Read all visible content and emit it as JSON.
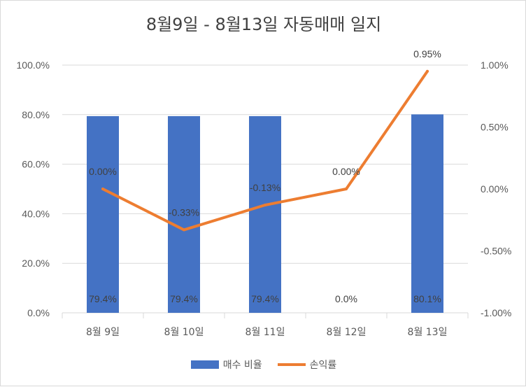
{
  "chart_data": {
    "type": "bar",
    "title": "8월9일 - 8월13일 자동매매 일지",
    "categories": [
      "8월 9일",
      "8월 10일",
      "8월 11일",
      "8월 12일",
      "8월 13일"
    ],
    "series": [
      {
        "name": "매수 비율",
        "type": "bar",
        "axis": "left",
        "color": "#4472c4",
        "values": [
          79.4,
          79.4,
          79.4,
          0.0,
          80.1
        ],
        "labels": [
          "79.4%",
          "79.4%",
          "79.4%",
          "0.0%",
          "80.1%"
        ]
      },
      {
        "name": "손익률",
        "type": "line",
        "axis": "right",
        "color": "#ed7d31",
        "values": [
          0.0,
          -0.33,
          -0.13,
          0.0,
          0.95
        ],
        "labels": [
          "0.00%",
          "-0.33%",
          "-0.13%",
          "0.00%",
          "0.95%"
        ]
      }
    ],
    "left_axis": {
      "ylim": [
        0,
        100
      ],
      "ticks": [
        0,
        20,
        40,
        60,
        80,
        100
      ],
      "tick_labels": [
        "0.0%",
        "20.0%",
        "40.0%",
        "60.0%",
        "80.0%",
        "100.0%"
      ]
    },
    "right_axis": {
      "ylim": [
        -1.0,
        1.0
      ],
      "ticks": [
        -1.0,
        -0.5,
        0.0,
        0.5,
        1.0
      ],
      "tick_labels": [
        "-1.00%",
        "-0.50%",
        "0.00%",
        "0.50%",
        "1.00%"
      ]
    },
    "grid": true,
    "legend_position": "bottom"
  }
}
